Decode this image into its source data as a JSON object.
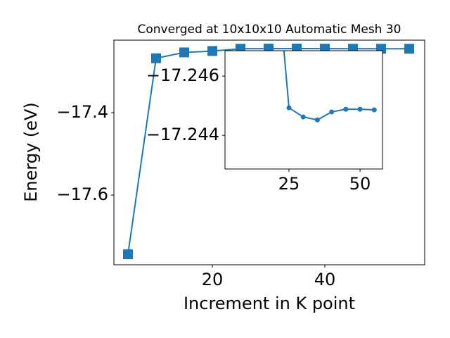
{
  "chart_data": {
    "type": "line",
    "title": "Converged at 10x10x10 Automatic Mesh 30",
    "xlabel": "Increment in K point",
    "ylabel": "Energy (eV)",
    "x": [
      5,
      10,
      15,
      20,
      25,
      30,
      35,
      40,
      45,
      50,
      55
    ],
    "series": [
      {
        "name": "Energy",
        "color": "#1f77b4",
        "values": [
          -17.7436,
          -17.268,
          -17.2538,
          -17.2504,
          -17.24493,
          -17.24462,
          -17.24452,
          -17.24479,
          -17.24488,
          -17.24488,
          -17.24486
        ]
      }
    ],
    "xlim": [
      2.5,
      57.75
    ],
    "ylim": [
      -17.769,
      -17.224
    ],
    "xticks": [
      20,
      40
    ],
    "yticks": [
      {
        "value": -17.6,
        "label": "−17.6"
      },
      {
        "value": -17.4,
        "label": "−17.4"
      }
    ],
    "inset": {
      "xlim": [
        2.5,
        57.9
      ],
      "ylim": [
        -17.24286,
        -17.24686
      ],
      "xticks": [
        25,
        50
      ],
      "yticks": [
        {
          "value": -17.246,
          "label": "−17.246"
        },
        {
          "value": -17.244,
          "label": "−17.244"
        }
      ]
    }
  }
}
